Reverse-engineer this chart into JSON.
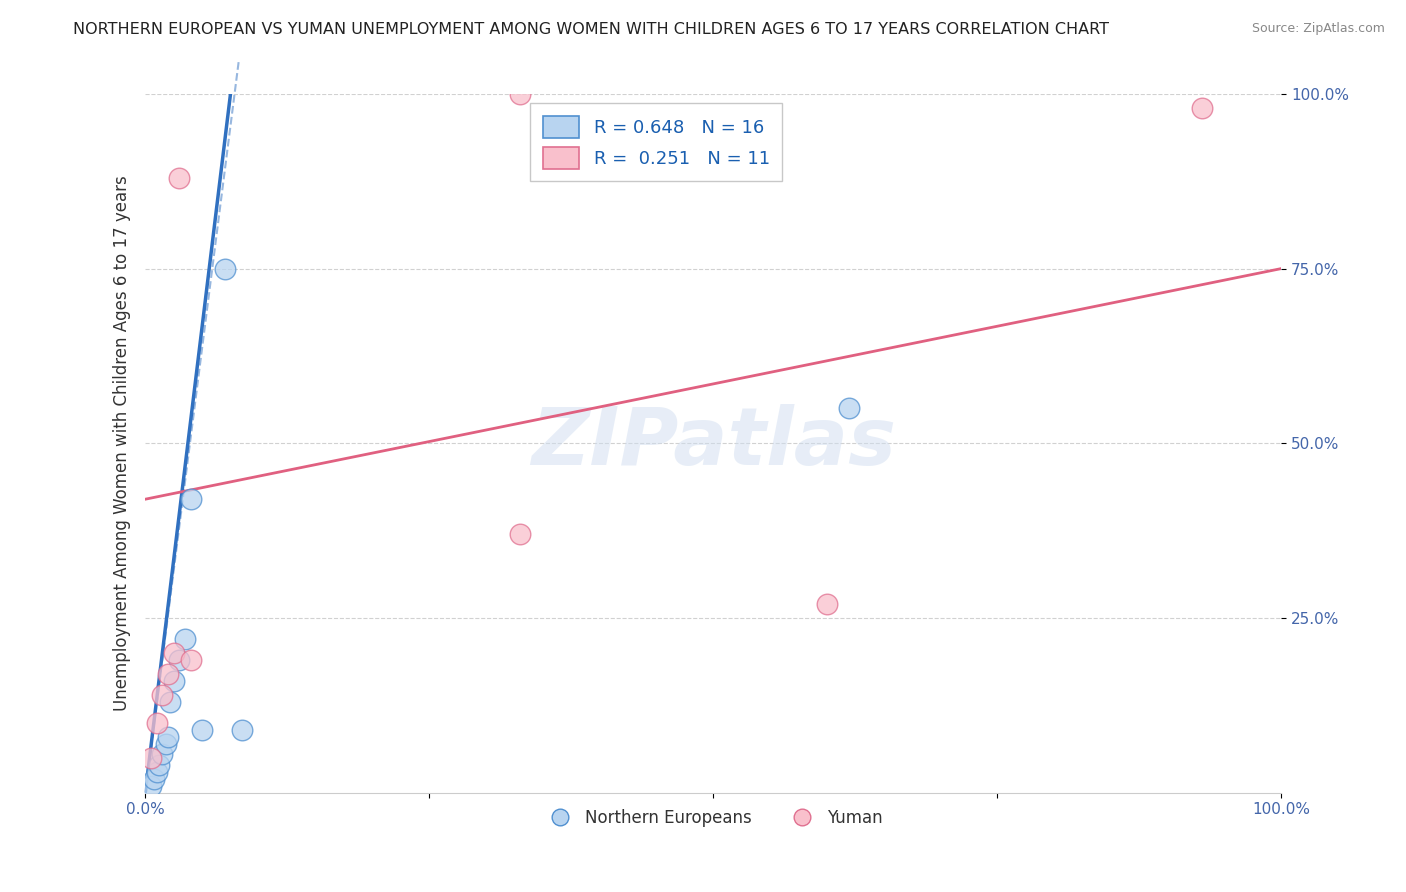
{
  "title": "NORTHERN EUROPEAN VS YUMAN UNEMPLOYMENT AMONG WOMEN WITH CHILDREN AGES 6 TO 17 YEARS CORRELATION CHART",
  "source": "Source: ZipAtlas.com",
  "ylabel": "Unemployment Among Women with Children Ages 6 to 17 years",
  "xlim": [
    0.0,
    1.0
  ],
  "ylim": [
    0.0,
    1.0
  ],
  "xticks": [
    0.0,
    0.25,
    0.5,
    0.75,
    1.0
  ],
  "xtick_labels": [
    "0.0%",
    "",
    "",
    "",
    "100.0%"
  ],
  "yticks": [
    0.25,
    0.5,
    0.75,
    1.0
  ],
  "ytick_labels": [
    "25.0%",
    "50.0%",
    "75.0%",
    "100.0%"
  ],
  "blue_x": [
    0.005,
    0.008,
    0.01,
    0.012,
    0.015,
    0.018,
    0.02,
    0.022,
    0.025,
    0.03,
    0.035,
    0.04,
    0.05,
    0.07,
    0.085,
    0.62
  ],
  "blue_y": [
    0.01,
    0.02,
    0.03,
    0.04,
    0.055,
    0.07,
    0.08,
    0.13,
    0.16,
    0.19,
    0.22,
    0.42,
    0.09,
    0.75,
    0.09,
    0.55
  ],
  "pink_x": [
    0.005,
    0.01,
    0.015,
    0.02,
    0.025,
    0.03,
    0.04,
    0.33,
    0.6,
    0.93,
    0.33
  ],
  "pink_y": [
    0.05,
    0.1,
    0.14,
    0.17,
    0.2,
    0.88,
    0.19,
    1.0,
    0.27,
    0.98,
    0.37
  ],
  "blue_line_x0": 0.0,
  "blue_line_y0": 0.0,
  "blue_line_x1": 0.075,
  "blue_line_y1": 1.0,
  "pink_line_x0": 0.0,
  "pink_line_y0": 0.42,
  "pink_line_x1": 1.0,
  "pink_line_y1": 0.75,
  "blue_R": 0.648,
  "blue_N": 16,
  "pink_R": 0.251,
  "pink_N": 11,
  "blue_fill_color": "#b8d4f0",
  "pink_fill_color": "#f9c0cc",
  "blue_edge_color": "#5090d0",
  "pink_edge_color": "#e07090",
  "blue_line_color": "#3070c0",
  "pink_line_color": "#e06080",
  "legend_labels": [
    "Northern Europeans",
    "Yuman"
  ],
  "watermark": "ZIPatlas",
  "background_color": "#ffffff",
  "grid_color": "#cccccc"
}
